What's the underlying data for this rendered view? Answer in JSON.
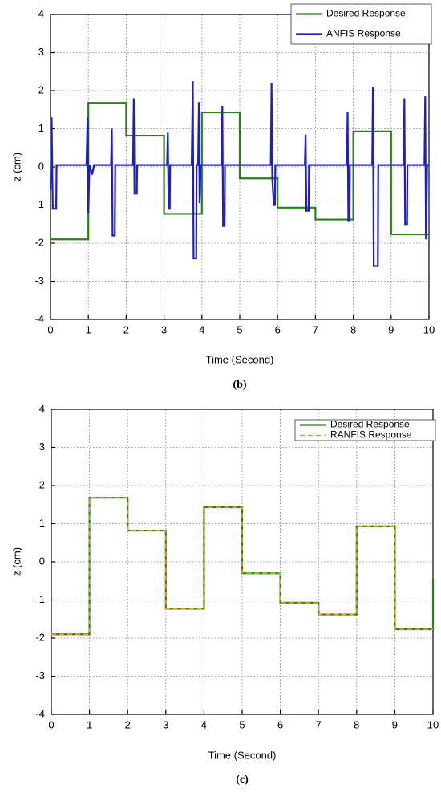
{
  "chart_data": [
    {
      "type": "line",
      "xlabel": "Time (Second)",
      "ylabel": "z (cm)",
      "caption": "(b)",
      "xlim": [
        0,
        10
      ],
      "ylim": [
        -4,
        4
      ],
      "xticks": [
        0,
        1,
        2,
        3,
        4,
        5,
        6,
        7,
        8,
        9,
        10
      ],
      "yticks": [
        -4,
        -3,
        -2,
        -1,
        0,
        1,
        2,
        3,
        4
      ],
      "grid": true,
      "legend": "top-right",
      "series": [
        {
          "name": "Desired Response",
          "color": "#2e7d1a",
          "linestyle": "solid",
          "x": [
            0,
            1,
            1,
            2,
            2,
            3,
            3,
            4,
            4,
            5,
            5,
            6,
            6,
            7,
            7,
            8,
            8,
            9,
            9,
            10
          ],
          "values": [
            -1.9,
            -1.9,
            1.68,
            1.68,
            0.82,
            0.82,
            -1.23,
            -1.23,
            1.43,
            1.43,
            -0.3,
            -0.3,
            -1.07,
            -1.07,
            -1.38,
            -1.38,
            0.93,
            0.93,
            -1.77,
            -1.77
          ]
        },
        {
          "name": "ANFIS Response",
          "color": "#1f1fbf",
          "linestyle": "solid",
          "x": [
            0,
            0.03,
            0.06,
            0.15,
            0.16,
            0.95,
            0.98,
            1.0,
            1.03,
            1.1,
            1.15,
            1.6,
            1.62,
            1.64,
            1.7,
            1.71,
            2.18,
            2.2,
            2.22,
            2.28,
            2.29,
            3.08,
            3.1,
            3.12,
            3.15,
            3.16,
            3.73,
            3.76,
            3.78,
            3.85,
            3.86,
            3.9,
            3.92,
            3.94,
            3.97,
            4.52,
            4.54,
            4.56,
            4.6,
            4.61,
            5.82,
            5.84,
            5.86,
            5.9,
            5.93,
            5.94,
            6.72,
            6.74,
            6.76,
            6.82,
            6.83,
            7.83,
            7.85,
            7.87,
            7.9,
            7.91,
            8.5,
            8.52,
            8.54,
            8.65,
            8.66,
            9.33,
            9.35,
            9.37,
            9.42,
            9.43,
            9.88,
            9.9,
            9.92,
            9.95,
            10
          ],
          "values": [
            -0.6,
            1.3,
            -1.1,
            -1.1,
            0.05,
            0.05,
            1.3,
            -1.2,
            0.05,
            -0.2,
            0.05,
            0.05,
            1.0,
            -1.8,
            -1.8,
            0.05,
            0.05,
            1.8,
            -0.7,
            -0.7,
            0.05,
            0.05,
            0.9,
            -1.1,
            -1.1,
            0.05,
            0.05,
            2.25,
            -2.4,
            -2.4,
            0.05,
            0.05,
            1.7,
            -0.95,
            0.05,
            0.05,
            1.6,
            -1.55,
            -1.55,
            0.05,
            0.05,
            2.2,
            -0.3,
            -1.0,
            -1.0,
            0.05,
            0.05,
            0.85,
            -1.15,
            -1.15,
            0.05,
            0.05,
            1.45,
            -1.4,
            -1.4,
            0.05,
            0.05,
            2.1,
            -2.6,
            -2.6,
            0.05,
            0.05,
            1.8,
            -1.5,
            -1.5,
            0.05,
            0.05,
            1.85,
            -1.9,
            0.05,
            0.05
          ]
        }
      ]
    },
    {
      "type": "line",
      "xlabel": "Time (Second)",
      "ylabel": "z (cm)",
      "caption": "(c)",
      "xlim": [
        0,
        10
      ],
      "ylim": [
        -4,
        4
      ],
      "xticks": [
        0,
        1,
        2,
        3,
        4,
        5,
        6,
        7,
        8,
        9,
        10
      ],
      "yticks": [
        -4,
        -3,
        -2,
        -1,
        0,
        1,
        2,
        3,
        4
      ],
      "grid": true,
      "legend": "top-right",
      "series": [
        {
          "name": "Desired Response",
          "color": "#2e7d1a",
          "linestyle": "solid",
          "x": [
            0,
            1,
            1,
            2,
            2,
            3,
            3,
            4,
            4,
            5,
            5,
            6,
            6,
            7,
            7,
            8,
            8,
            9,
            9,
            10,
            10
          ],
          "values": [
            -1.9,
            -1.9,
            1.68,
            1.68,
            0.82,
            0.82,
            -1.23,
            -1.23,
            1.43,
            1.43,
            -0.3,
            -0.3,
            -1.07,
            -1.07,
            -1.38,
            -1.38,
            0.93,
            0.93,
            -1.77,
            -1.77,
            -0.45
          ]
        },
        {
          "name": "RANFIS Response",
          "color": "#e8a317",
          "linestyle": "dashed",
          "x": [
            0,
            1,
            1,
            2,
            2,
            3,
            3,
            4,
            4,
            5,
            5,
            6,
            6,
            7,
            7,
            8,
            8,
            9,
            9,
            10
          ],
          "values": [
            -1.9,
            -1.9,
            1.68,
            1.68,
            0.82,
            0.82,
            -1.23,
            -1.23,
            1.43,
            1.43,
            -0.3,
            -0.3,
            -1.07,
            -1.07,
            -1.38,
            -1.38,
            0.93,
            0.93,
            -1.77,
            -1.77
          ]
        }
      ]
    }
  ]
}
